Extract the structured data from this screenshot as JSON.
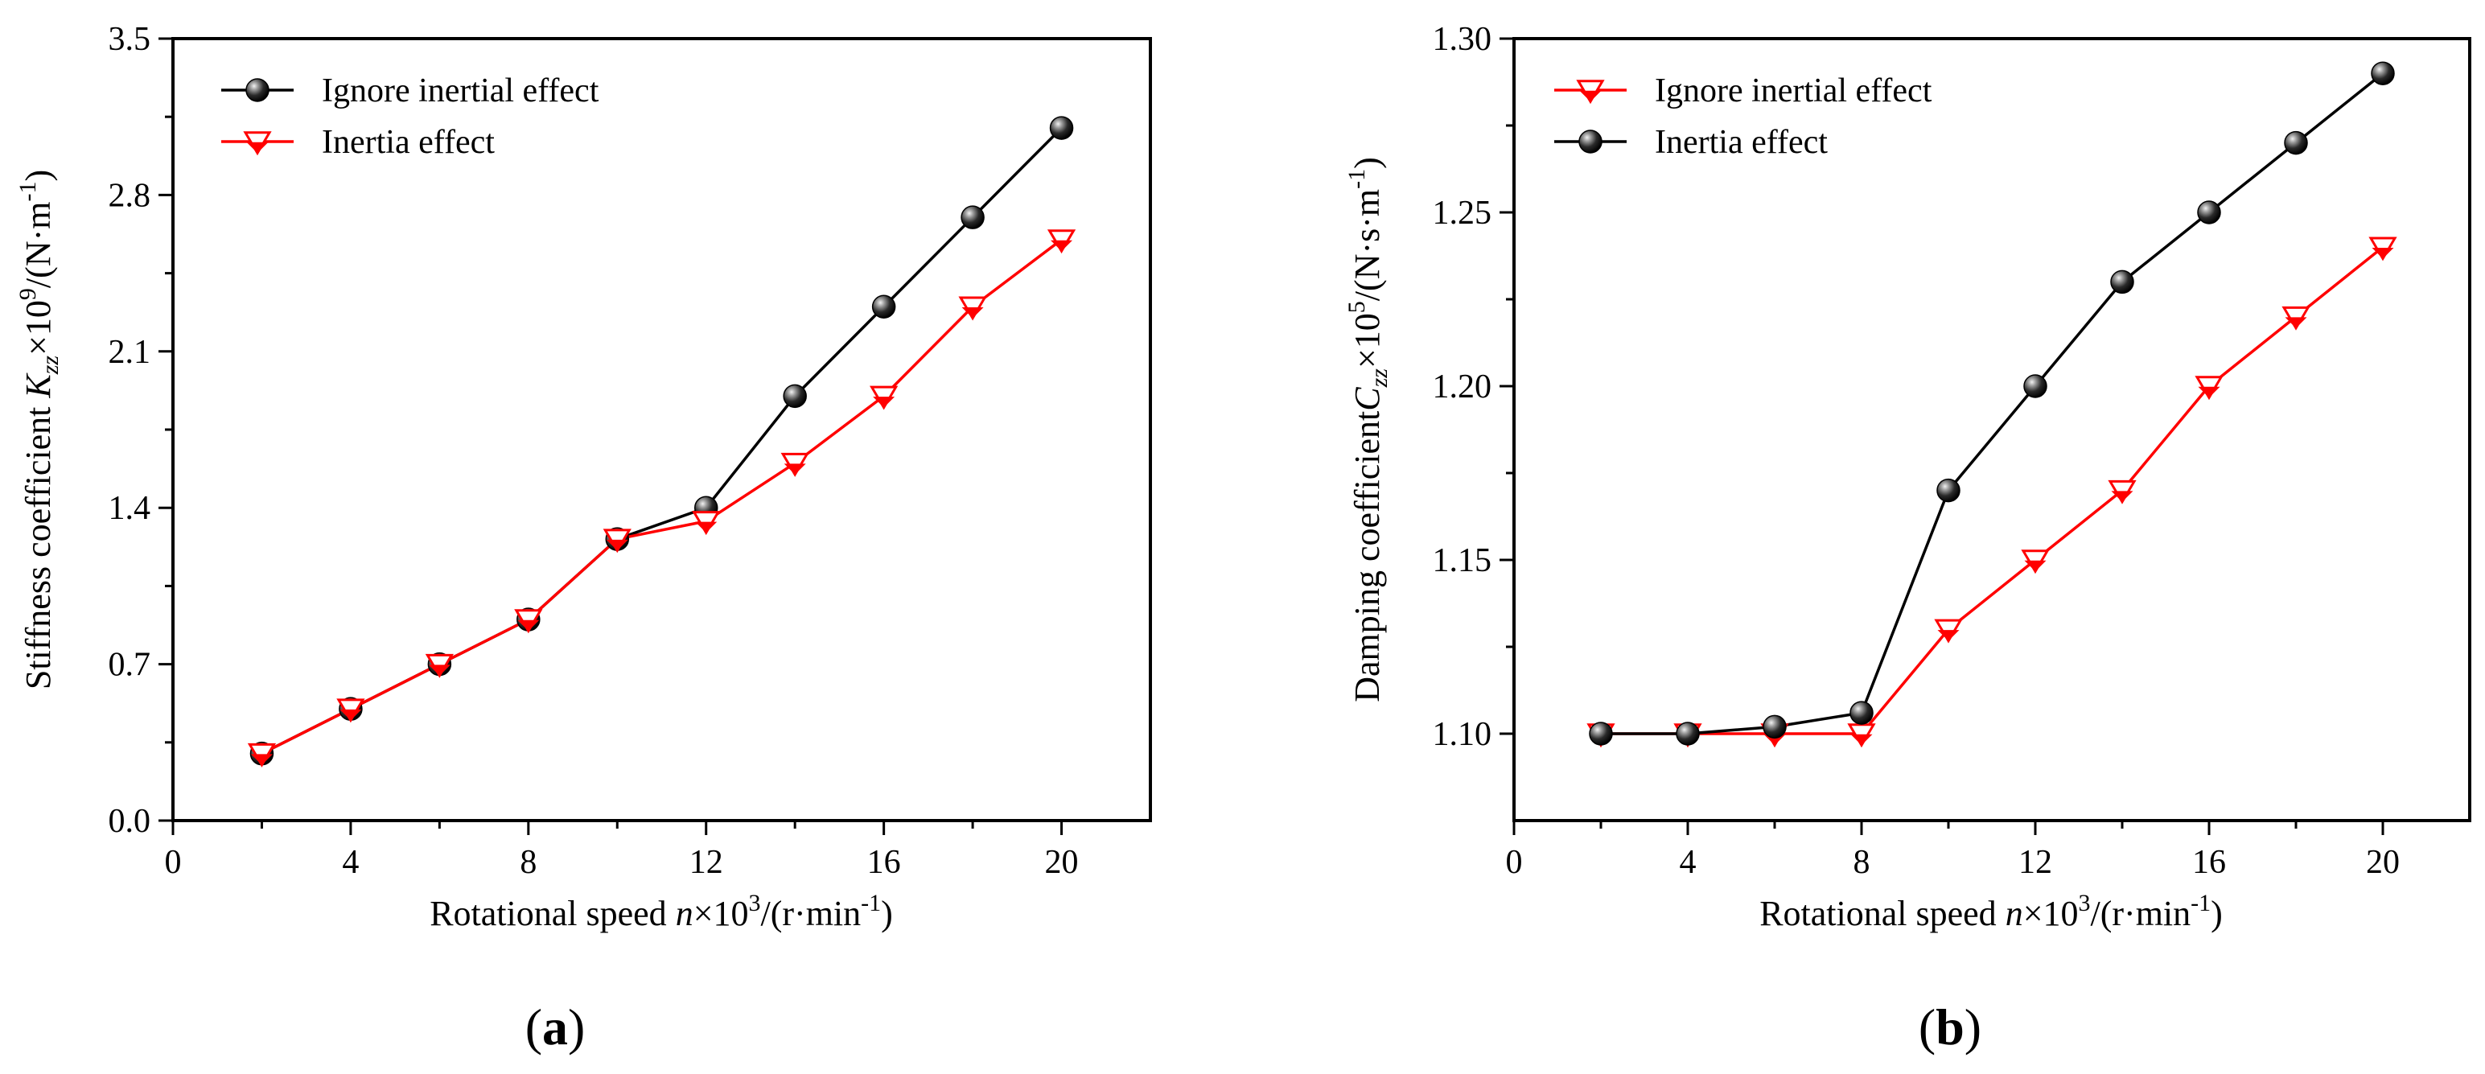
{
  "colors": {
    "black_series": "#000000",
    "red_series": "#ff0000",
    "axis": "#000000"
  },
  "chart_data": [
    {
      "type": "line",
      "panel_label": {
        "open": "(",
        "letter": "a",
        "close": ")"
      },
      "title": "",
      "xlabel": {
        "prefix": "Rotational speed  ",
        "var": "n",
        "mid": "×10",
        "sup": "3",
        "after": "/(r·min",
        "unit_sup": "-1",
        "close": ")"
      },
      "ylabel": {
        "prefix": "Stiffness coefficient ",
        "var": "K",
        "sub": "zz",
        "mid": "×10",
        "sup": "9",
        "after": "/(N·m",
        "unit_sup": "-1",
        "close": ")"
      },
      "xlim": [
        0,
        22
      ],
      "ylim": [
        0,
        3.5
      ],
      "x_ticks": [
        0,
        4,
        8,
        12,
        16,
        20
      ],
      "x_tick_labels": [
        "0",
        "4",
        "8",
        "12",
        "16",
        "20"
      ],
      "y_ticks": [
        0,
        0.7,
        1.4,
        2.1,
        2.8,
        3.5
      ],
      "y_tick_labels": [
        "0.0",
        "0.7",
        "1.4",
        "2.1",
        "2.8",
        "3.5"
      ],
      "legend_position": "top-left",
      "x": [
        2,
        4,
        6,
        8,
        10,
        12,
        14,
        16,
        18,
        20
      ],
      "series": [
        {
          "name": "Ignore inertial effect",
          "marker": "sphere",
          "color": "#000000",
          "values": [
            0.3,
            0.5,
            0.7,
            0.9,
            1.26,
            1.4,
            1.9,
            2.3,
            2.7,
            3.1
          ]
        },
        {
          "name": "Inertia effect",
          "marker": "triangle-down",
          "color": "#ff0000",
          "values": [
            0.3,
            0.5,
            0.7,
            0.9,
            1.26,
            1.34,
            1.6,
            1.9,
            2.3,
            2.6
          ]
        }
      ]
    },
    {
      "type": "line",
      "panel_label": {
        "open": "(",
        "letter": "b",
        "close": ")"
      },
      "title": "",
      "xlabel": {
        "prefix": "Rotational speed ",
        "var": "n",
        "mid": "×10",
        "sup": "3",
        "after": "/(r·min",
        "unit_sup": "-1",
        "close": ")"
      },
      "ylabel": {
        "prefix": "Damping coefficient",
        "var": "C",
        "sub": "zz",
        "mid": "×10",
        "sup": "5",
        "after": "/(N·s·m",
        "unit_sup": "-1",
        "close": ")"
      },
      "xlim": [
        0,
        22
      ],
      "ylim": [
        1.075,
        1.3
      ],
      "x_ticks": [
        0,
        4,
        8,
        12,
        16,
        20
      ],
      "x_tick_labels": [
        "0",
        "4",
        "8",
        "12",
        "16",
        "20"
      ],
      "y_ticks": [
        1.1,
        1.15,
        1.2,
        1.25,
        1.3
      ],
      "y_tick_labels": [
        "1.10",
        "1.15",
        "1.20",
        "1.25",
        "1.30"
      ],
      "legend_position": "top-left",
      "x": [
        2,
        4,
        6,
        8,
        10,
        12,
        14,
        16,
        18,
        20
      ],
      "series": [
        {
          "name": "Ignore inertial effect",
          "marker": "triangle-down",
          "color": "#ff0000",
          "values": [
            1.1,
            1.1,
            1.1,
            1.1,
            1.13,
            1.15,
            1.17,
            1.2,
            1.22,
            1.24
          ]
        },
        {
          "name": "Inertia effect",
          "marker": "sphere",
          "color": "#000000",
          "values": [
            1.1,
            1.1,
            1.102,
            1.106,
            1.17,
            1.2,
            1.23,
            1.25,
            1.27,
            1.29
          ]
        }
      ]
    }
  ]
}
